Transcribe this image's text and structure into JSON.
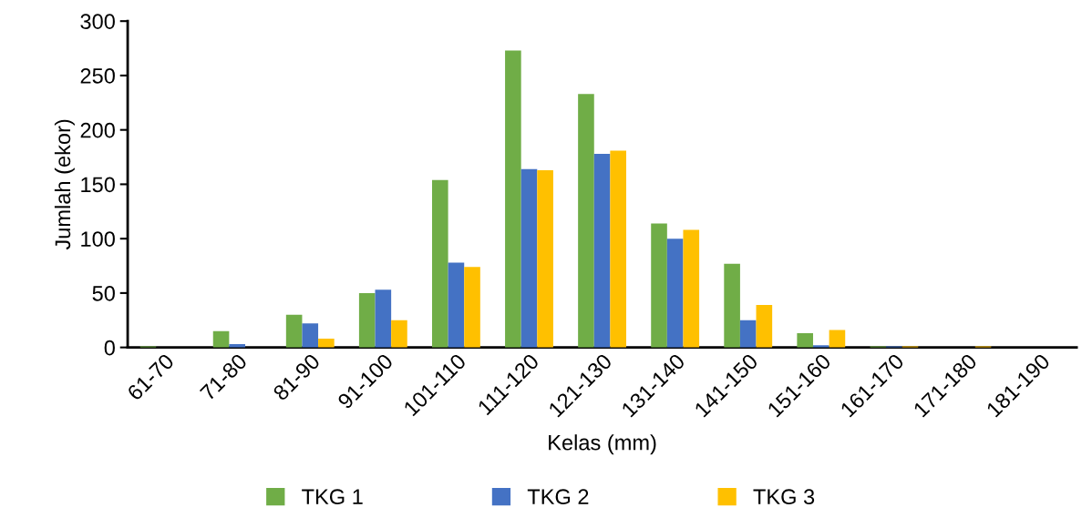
{
  "chart_data": {
    "type": "bar",
    "xlabel": "Kelas (mm)",
    "ylabel": "Jumlah (ekor)",
    "categories": [
      "61-70",
      "71-80",
      "81-90",
      "91-100",
      "101-110",
      "111-120",
      "121-130",
      "131-140",
      "141-150",
      "151-160",
      "161-170",
      "171-180",
      "181-190"
    ],
    "series": [
      {
        "name": "TKG 1",
        "color": "#70ad47",
        "values": [
          1,
          15,
          30,
          50,
          154,
          273,
          233,
          114,
          77,
          13,
          1,
          0,
          0
        ]
      },
      {
        "name": "TKG 2",
        "color": "#4472c4",
        "values": [
          0,
          3,
          22,
          53,
          78,
          164,
          178,
          100,
          25,
          2,
          1,
          0,
          0
        ]
      },
      {
        "name": "TKG 3",
        "color": "#ffc000",
        "values": [
          0,
          0,
          8,
          25,
          74,
          163,
          181,
          108,
          39,
          16,
          1,
          1,
          0
        ]
      }
    ],
    "ylim": [
      0,
      300
    ],
    "yticks": [
      0,
      50,
      100,
      150,
      200,
      250,
      300
    ],
    "grid": false,
    "legend": "bottom"
  }
}
